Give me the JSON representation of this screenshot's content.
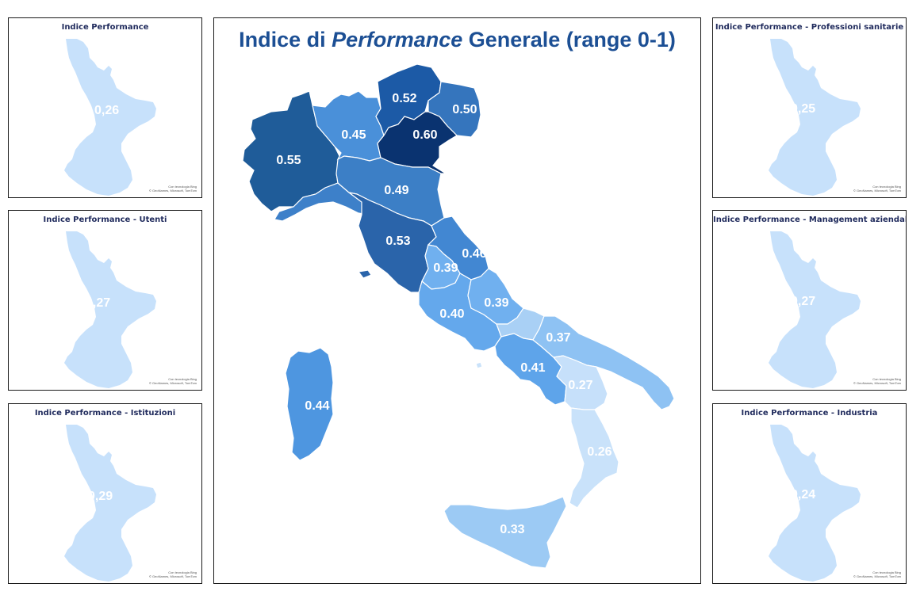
{
  "main": {
    "title_prefix": "Indice di ",
    "title_italic": "Performance",
    "title_suffix": " Generale (range 0-1)",
    "regions": [
      {
        "id": "valle-aosta-piemonte",
        "value": "0.55",
        "color": "#1f5c99"
      },
      {
        "id": "lombardia",
        "value": "0.45",
        "color": "#4a90d9"
      },
      {
        "id": "trentino-alto-adige",
        "value": "0.52",
        "color": "#1c5aa6"
      },
      {
        "id": "veneto",
        "value": "0.60",
        "color": "#0a3370"
      },
      {
        "id": "friuli-venezia-giulia",
        "value": "0.50",
        "color": "#3575bd"
      },
      {
        "id": "liguria",
        "value": "",
        "color": "#3d80c9"
      },
      {
        "id": "emilia-romagna",
        "value": "0.49",
        "color": "#3c7fc6"
      },
      {
        "id": "toscana",
        "value": "0.53",
        "color": "#2a64aa"
      },
      {
        "id": "marche",
        "value": "0.46",
        "color": "#4287d2"
      },
      {
        "id": "umbria",
        "value": "0.39",
        "color": "#70b0ef"
      },
      {
        "id": "abruzzo",
        "value": "0.39",
        "color": "#70b0ef"
      },
      {
        "id": "lazio",
        "value": "0.40",
        "color": "#64a8ec"
      },
      {
        "id": "molise",
        "value": "",
        "color": "#a9d0f5"
      },
      {
        "id": "campania",
        "value": "0.41",
        "color": "#5ea4ea"
      },
      {
        "id": "puglia",
        "value": "0.37",
        "color": "#8ec2f3"
      },
      {
        "id": "basilicata",
        "value": "0.27",
        "color": "#c6e0fa"
      },
      {
        "id": "calabria",
        "value": "0.26",
        "color": "#c9e2fa"
      },
      {
        "id": "sicilia",
        "value": "0.33",
        "color": "#9ccaf4"
      },
      {
        "id": "sardegna",
        "value": "0.44",
        "color": "#4e96e0"
      }
    ]
  },
  "small_maps": [
    {
      "title": "Indice Performance",
      "value": "0,26"
    },
    {
      "title": "Indice Performance - Utenti",
      "value": "0,27"
    },
    {
      "title": "Indice Performance - Istituzioni",
      "value": "0,29"
    },
    {
      "title": "Indice Performance - Professioni sanitarie",
      "value": "0,25"
    },
    {
      "title": "Indice Performance  - Management aziendale",
      "value": "0,27"
    },
    {
      "title": "Indice Performance - Industria",
      "value": "0,24"
    }
  ],
  "calabria_color": "#c7e1fb",
  "credit": {
    "line1": "Con tecnologia Bing",
    "line2": "© GeoNames, Microsoft, TomTom"
  }
}
